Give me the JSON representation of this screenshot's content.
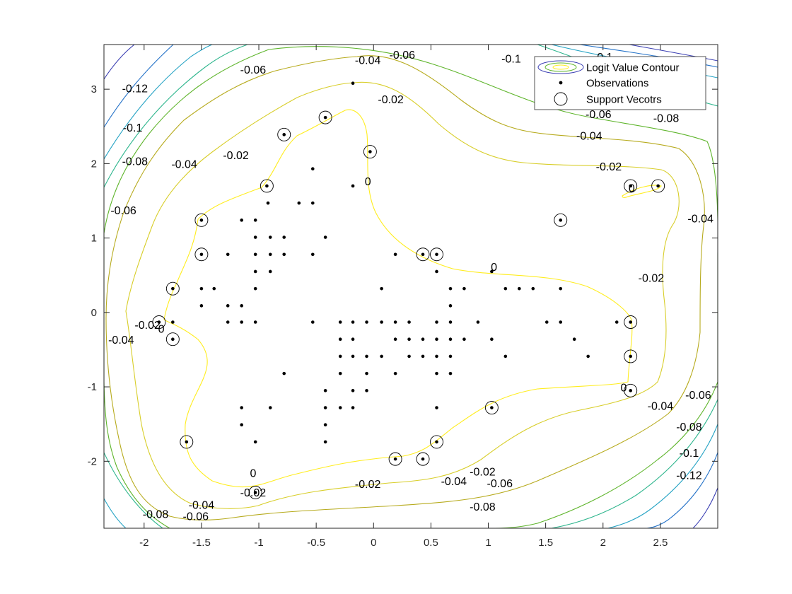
{
  "chart_data": {
    "type": "scatter",
    "title": "",
    "xlabel": "",
    "ylabel": "",
    "xlim": [
      -2.35,
      3.0
    ],
    "ylim": [
      -2.9,
      3.6
    ],
    "x_ticks": [
      "-2",
      "-1.5",
      "-1",
      "-0.5",
      "0",
      "0.5",
      "1",
      "1.5",
      "2",
      "2.5"
    ],
    "y_ticks": [
      "-2",
      "-1",
      "0",
      "1",
      "2",
      "3"
    ],
    "grid": false,
    "legend_position": "top-right",
    "legend": [
      {
        "label": "Logit Value Contour"
      },
      {
        "label": "Observations"
      },
      {
        "label": "Support Vecotrs"
      }
    ],
    "colors": {
      "level_0": "#ffed1f",
      "level_m002": "#d8ce2a",
      "level_m004": "#b7ab1e",
      "level_m006": "#5fb52c",
      "level_m008": "#2fb68e",
      "level_m010": "#25a3c4",
      "level_m012": "#2472c8",
      "level_m014": "#3b3fb3",
      "points": "#000000"
    },
    "contour_labels": [
      {
        "text": "0",
        "x": 1.05,
        "y": 0.6
      },
      {
        "text": "0",
        "x": -0.05,
        "y": 1.75
      },
      {
        "text": "0",
        "x": -1.85,
        "y": -0.23
      },
      {
        "text": "0",
        "x": -1.05,
        "y": -2.17
      },
      {
        "text": "0",
        "x": 2.18,
        "y": -1.02
      },
      {
        "text": "0",
        "x": 2.25,
        "y": 1.66
      },
      {
        "text": "-0.02",
        "x": 0.95,
        "y": -2.15
      },
      {
        "text": "-0.02",
        "x": 2.05,
        "y": 1.95
      },
      {
        "text": "-0.02",
        "x": -1.97,
        "y": -0.18
      },
      {
        "text": "-0.02",
        "x": -1.2,
        "y": 2.1
      },
      {
        "text": "-0.02",
        "x": 0.15,
        "y": 2.85
      },
      {
        "text": "-0.02",
        "x": 2.42,
        "y": 0.45
      },
      {
        "text": "-0.02",
        "x": -1.05,
        "y": -2.43
      },
      {
        "text": "-0.02",
        "x": -0.05,
        "y": -2.32
      },
      {
        "text": "-0.04",
        "x": -0.05,
        "y": 3.38
      },
      {
        "text": "-0.04",
        "x": 1.88,
        "y": 2.36
      },
      {
        "text": "-0.04",
        "x": -1.65,
        "y": 1.98
      },
      {
        "text": "-0.04",
        "x": -2.2,
        "y": -0.38
      },
      {
        "text": "-0.04",
        "x": 2.5,
        "y": -1.27
      },
      {
        "text": "-0.04",
        "x": -1.5,
        "y": -2.6
      },
      {
        "text": "-0.04",
        "x": 0.7,
        "y": -2.28
      },
      {
        "text": "-0.04",
        "x": 2.85,
        "y": 1.25
      },
      {
        "text": "-0.06",
        "x": -1.05,
        "y": 3.25
      },
      {
        "text": "-0.06",
        "x": 0.25,
        "y": 3.45
      },
      {
        "text": "-0.06",
        "x": 1.96,
        "y": 2.65
      },
      {
        "text": "-0.06",
        "x": -2.18,
        "y": 1.36
      },
      {
        "text": "-0.06",
        "x": 2.83,
        "y": -1.12
      },
      {
        "text": "-0.06",
        "x": -1.55,
        "y": -2.75
      },
      {
        "text": "-0.06",
        "x": 1.1,
        "y": -2.31
      },
      {
        "text": "-0.08",
        "x": -2.08,
        "y": 2.02
      },
      {
        "text": "-0.08",
        "x": 2.55,
        "y": 2.6
      },
      {
        "text": "-0.08",
        "x": 2.75,
        "y": -1.55
      },
      {
        "text": "-0.08",
        "x": -1.9,
        "y": -2.72
      },
      {
        "text": "-0.08",
        "x": 0.95,
        "y": -2.62
      },
      {
        "text": "-0.1",
        "x": -2.1,
        "y": 2.47
      },
      {
        "text": "-0.1",
        "x": 2.75,
        "y": -1.9
      },
      {
        "text": "-0.1",
        "x": 1.2,
        "y": 3.4
      },
      {
        "text": "-0.1",
        "x": 2.0,
        "y": 3.42
      },
      {
        "text": "-0.12",
        "x": -2.08,
        "y": 3.0
      },
      {
        "text": "-0.12",
        "x": 2.75,
        "y": -2.2
      }
    ],
    "observations": [
      [
        -0.18,
        3.08
      ],
      [
        -0.42,
        2.62
      ],
      [
        -0.78,
        2.39
      ],
      [
        -0.03,
        2.16
      ],
      [
        -0.53,
        1.93
      ],
      [
        -0.93,
        1.7
      ],
      [
        -0.18,
        1.7
      ],
      [
        -0.92,
        1.47
      ],
      [
        -0.65,
        1.47
      ],
      [
        -0.53,
        1.47
      ],
      [
        -1.5,
        1.24
      ],
      [
        -1.15,
        1.24
      ],
      [
        -1.03,
        1.24
      ],
      [
        -1.03,
        1.01
      ],
      [
        -0.9,
        1.01
      ],
      [
        -0.78,
        1.01
      ],
      [
        -0.42,
        1.01
      ],
      [
        -1.5,
        0.78
      ],
      [
        -1.27,
        0.78
      ],
      [
        -1.03,
        0.78
      ],
      [
        -0.9,
        0.78
      ],
      [
        -0.78,
        0.78
      ],
      [
        -0.53,
        0.78
      ],
      [
        0.19,
        0.78
      ],
      [
        0.43,
        0.78
      ],
      [
        0.55,
        0.78
      ],
      [
        -1.03,
        0.55
      ],
      [
        -0.9,
        0.55
      ],
      [
        0.55,
        0.55
      ],
      [
        1.03,
        0.55
      ],
      [
        -1.75,
        0.32
      ],
      [
        -1.5,
        0.32
      ],
      [
        -1.39,
        0.32
      ],
      [
        -1.03,
        0.32
      ],
      [
        0.07,
        0.32
      ],
      [
        0.67,
        0.32
      ],
      [
        0.79,
        0.32
      ],
      [
        1.15,
        0.32
      ],
      [
        1.27,
        0.32
      ],
      [
        1.39,
        0.32
      ],
      [
        1.63,
        0.32
      ],
      [
        -1.5,
        0.09
      ],
      [
        -1.27,
        0.09
      ],
      [
        -1.15,
        0.09
      ],
      [
        0.67,
        0.09
      ],
      [
        -1.87,
        -0.13
      ],
      [
        -1.75,
        -0.13
      ],
      [
        -1.27,
        -0.13
      ],
      [
        -1.15,
        -0.13
      ],
      [
        -1.03,
        -0.13
      ],
      [
        -0.53,
        -0.13
      ],
      [
        -0.29,
        -0.13
      ],
      [
        -0.18,
        -0.13
      ],
      [
        -0.06,
        -0.13
      ],
      [
        0.07,
        -0.13
      ],
      [
        0.19,
        -0.13
      ],
      [
        0.31,
        -0.13
      ],
      [
        0.55,
        -0.13
      ],
      [
        0.67,
        -0.13
      ],
      [
        0.91,
        -0.13
      ],
      [
        1.51,
        -0.13
      ],
      [
        1.63,
        -0.13
      ],
      [
        2.12,
        -0.13
      ],
      [
        2.24,
        -0.13
      ],
      [
        -1.75,
        -0.36
      ],
      [
        -0.29,
        -0.36
      ],
      [
        -0.18,
        -0.36
      ],
      [
        0.19,
        -0.36
      ],
      [
        0.31,
        -0.36
      ],
      [
        0.43,
        -0.36
      ],
      [
        0.55,
        -0.36
      ],
      [
        0.67,
        -0.36
      ],
      [
        0.79,
        -0.36
      ],
      [
        1.03,
        -0.36
      ],
      [
        1.75,
        -0.36
      ],
      [
        -0.29,
        -0.59
      ],
      [
        -0.18,
        -0.59
      ],
      [
        -0.06,
        -0.59
      ],
      [
        0.07,
        -0.59
      ],
      [
        0.31,
        -0.59
      ],
      [
        0.43,
        -0.59
      ],
      [
        0.55,
        -0.59
      ],
      [
        0.67,
        -0.59
      ],
      [
        1.15,
        -0.59
      ],
      [
        1.87,
        -0.59
      ],
      [
        2.24,
        -0.59
      ],
      [
        -0.78,
        -0.82
      ],
      [
        -0.29,
        -0.82
      ],
      [
        -0.06,
        -0.82
      ],
      [
        0.19,
        -0.82
      ],
      [
        0.55,
        -0.82
      ],
      [
        0.67,
        -0.82
      ],
      [
        -0.42,
        -1.05
      ],
      [
        -0.18,
        -1.05
      ],
      [
        -0.06,
        -1.05
      ],
      [
        2.24,
        -1.05
      ],
      [
        -1.15,
        -1.28
      ],
      [
        -0.9,
        -1.28
      ],
      [
        -0.42,
        -1.28
      ],
      [
        -0.29,
        -1.28
      ],
      [
        -0.18,
        -1.28
      ],
      [
        0.55,
        -1.28
      ],
      [
        1.03,
        -1.28
      ],
      [
        -1.15,
        -1.51
      ],
      [
        -0.42,
        -1.51
      ],
      [
        -1.63,
        -1.74
      ],
      [
        -1.03,
        -1.74
      ],
      [
        -0.42,
        -1.74
      ],
      [
        0.55,
        -1.74
      ],
      [
        0.19,
        -1.97
      ],
      [
        0.43,
        -1.97
      ],
      [
        -1.03,
        -2.42
      ],
      [
        2.24,
        1.7
      ],
      [
        2.48,
        1.7
      ],
      [
        1.63,
        1.24
      ]
    ],
    "support_vectors": [
      [
        -0.42,
        2.62
      ],
      [
        -0.78,
        2.39
      ],
      [
        -0.03,
        2.16
      ],
      [
        -0.93,
        1.7
      ],
      [
        -1.5,
        1.24
      ],
      [
        -1.5,
        0.78
      ],
      [
        0.43,
        0.78
      ],
      [
        0.55,
        0.78
      ],
      [
        -1.75,
        0.32
      ],
      [
        -1.87,
        -0.13
      ],
      [
        -1.75,
        -0.36
      ],
      [
        2.24,
        -0.13
      ],
      [
        2.24,
        -0.59
      ],
      [
        2.24,
        -1.05
      ],
      [
        1.03,
        -1.28
      ],
      [
        -1.63,
        -1.74
      ],
      [
        0.55,
        -1.74
      ],
      [
        0.19,
        -1.97
      ],
      [
        0.43,
        -1.97
      ],
      [
        -1.03,
        -2.42
      ],
      [
        2.24,
        1.7
      ],
      [
        2.48,
        1.7
      ],
      [
        1.63,
        1.24
      ]
    ]
  }
}
